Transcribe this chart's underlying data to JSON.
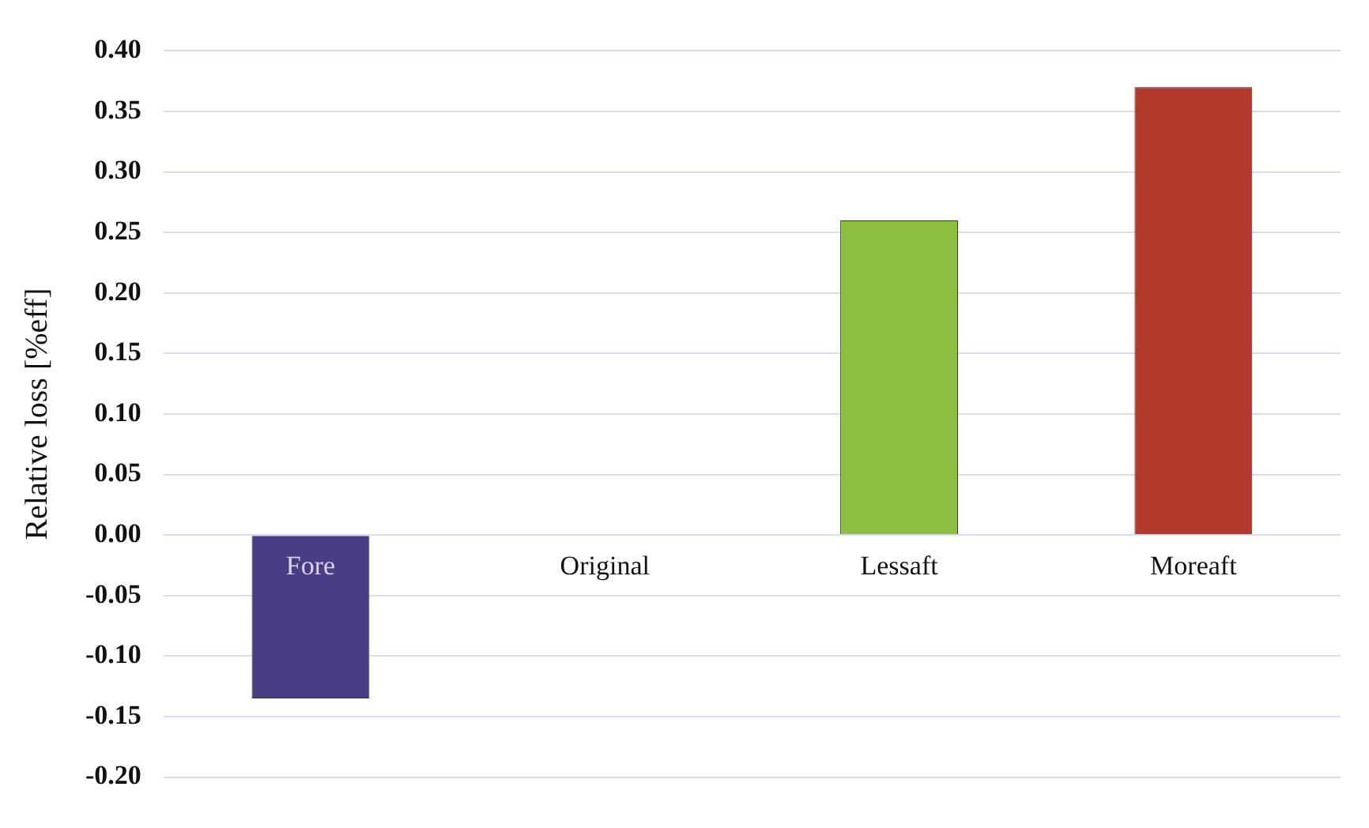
{
  "chart_data": {
    "type": "bar",
    "ylabel": "Relative loss [%eff]",
    "categories": [
      "Fore",
      "Original",
      "Lessaft",
      "Moreaft"
    ],
    "values": [
      -0.135,
      0,
      0.26,
      0.37
    ],
    "colors": [
      "#4a3d86",
      "#8fa9d6",
      "#8cbf3f",
      "#b23a2c"
    ],
    "ylim": [
      -0.2,
      0.4
    ],
    "yticks": [
      {
        "value": -0.2,
        "label": "-0.20"
      },
      -0.15,
      {
        "value": -0.1,
        "label": "-0.10"
      },
      -0.05,
      {
        "value": 0,
        "label": "0.00"
      },
      0.05,
      {
        "value": 0.1,
        "label": "0.10"
      },
      0.15,
      {
        "value": 0.2,
        "label": "0.20"
      },
      0.25,
      {
        "value": 0.3,
        "label": "0.30"
      },
      0.35,
      {
        "value": 0.4,
        "label": "0.40"
      }
    ],
    "grid": "y",
    "legend": false
  }
}
